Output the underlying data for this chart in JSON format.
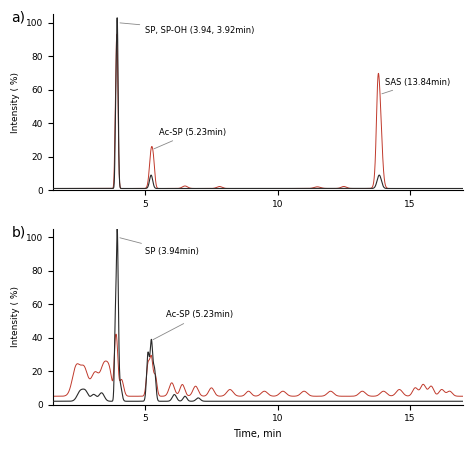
{
  "panel_a_label": "a)",
  "panel_b_label": "b)",
  "xlabel": "Time, min",
  "ylabel": "Intensity ( %)",
  "xlim": [
    1.5,
    17.0
  ],
  "ylim": [
    0,
    105
  ],
  "xticks": [
    5,
    10,
    15
  ],
  "yticks": [
    0,
    20,
    40,
    60,
    80,
    100
  ],
  "color_black": "#2a2a2a",
  "color_red": "#c0392b",
  "figsize": [
    4.74,
    4.5
  ],
  "dpi": 100
}
